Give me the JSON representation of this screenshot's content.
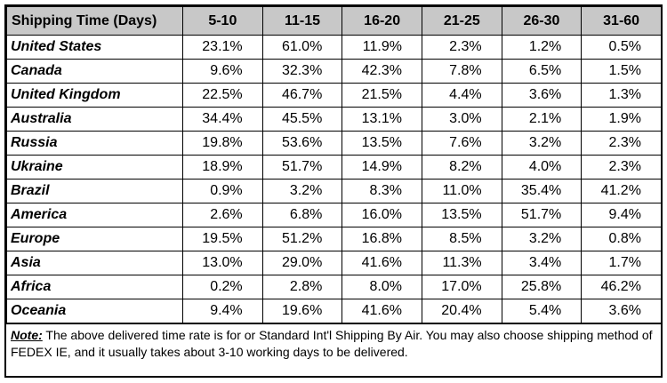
{
  "table": {
    "headers": [
      "Shipping Time (Days)",
      "5-10",
      "11-15",
      "16-20",
      "21-25",
      "26-30",
      "31-60"
    ],
    "rows": [
      {
        "country": "United States",
        "values": [
          "23.1%",
          "61.0%",
          "11.9%",
          "2.3%",
          "1.2%",
          "0.5%"
        ]
      },
      {
        "country": "Canada",
        "values": [
          "9.6%",
          "32.3%",
          "42.3%",
          "7.8%",
          "6.5%",
          "1.5%"
        ]
      },
      {
        "country": "United Kingdom",
        "values": [
          "22.5%",
          "46.7%",
          "21.5%",
          "4.4%",
          "3.6%",
          "1.3%"
        ]
      },
      {
        "country": "Australia",
        "values": [
          "34.4%",
          "45.5%",
          "13.1%",
          "3.0%",
          "2.1%",
          "1.9%"
        ]
      },
      {
        "country": "Russia",
        "values": [
          "19.8%",
          "53.6%",
          "13.5%",
          "7.6%",
          "3.2%",
          "2.3%"
        ]
      },
      {
        "country": "Ukraine",
        "values": [
          "18.9%",
          "51.7%",
          "14.9%",
          "8.2%",
          "4.0%",
          "2.3%"
        ]
      },
      {
        "country": "Brazil",
        "values": [
          "0.9%",
          "3.2%",
          "8.3%",
          "11.0%",
          "35.4%",
          "41.2%"
        ]
      },
      {
        "country": "America",
        "values": [
          "2.6%",
          "6.8%",
          "16.0%",
          "13.5%",
          "51.7%",
          "9.4%"
        ]
      },
      {
        "country": "Europe",
        "values": [
          "19.5%",
          "51.2%",
          "16.8%",
          "8.5%",
          "3.2%",
          "0.8%"
        ]
      },
      {
        "country": "Asia",
        "values": [
          "13.0%",
          "29.0%",
          "41.6%",
          "11.3%",
          "3.4%",
          "1.7%"
        ]
      },
      {
        "country": "Africa",
        "values": [
          "0.2%",
          "2.8%",
          "8.0%",
          "17.0%",
          "25.8%",
          "46.2%"
        ]
      },
      {
        "country": "Oceania",
        "values": [
          "9.4%",
          "19.6%",
          "41.6%",
          "20.4%",
          "5.4%",
          "3.6%"
        ]
      }
    ]
  },
  "note": {
    "label": "Note:",
    "text": " The above delivered time rate is for or Standard Int'l Shipping By Air. You may also choose shipping method of  FEDEX  IE, and it usually takes about 3-10 working days to be delivered."
  }
}
